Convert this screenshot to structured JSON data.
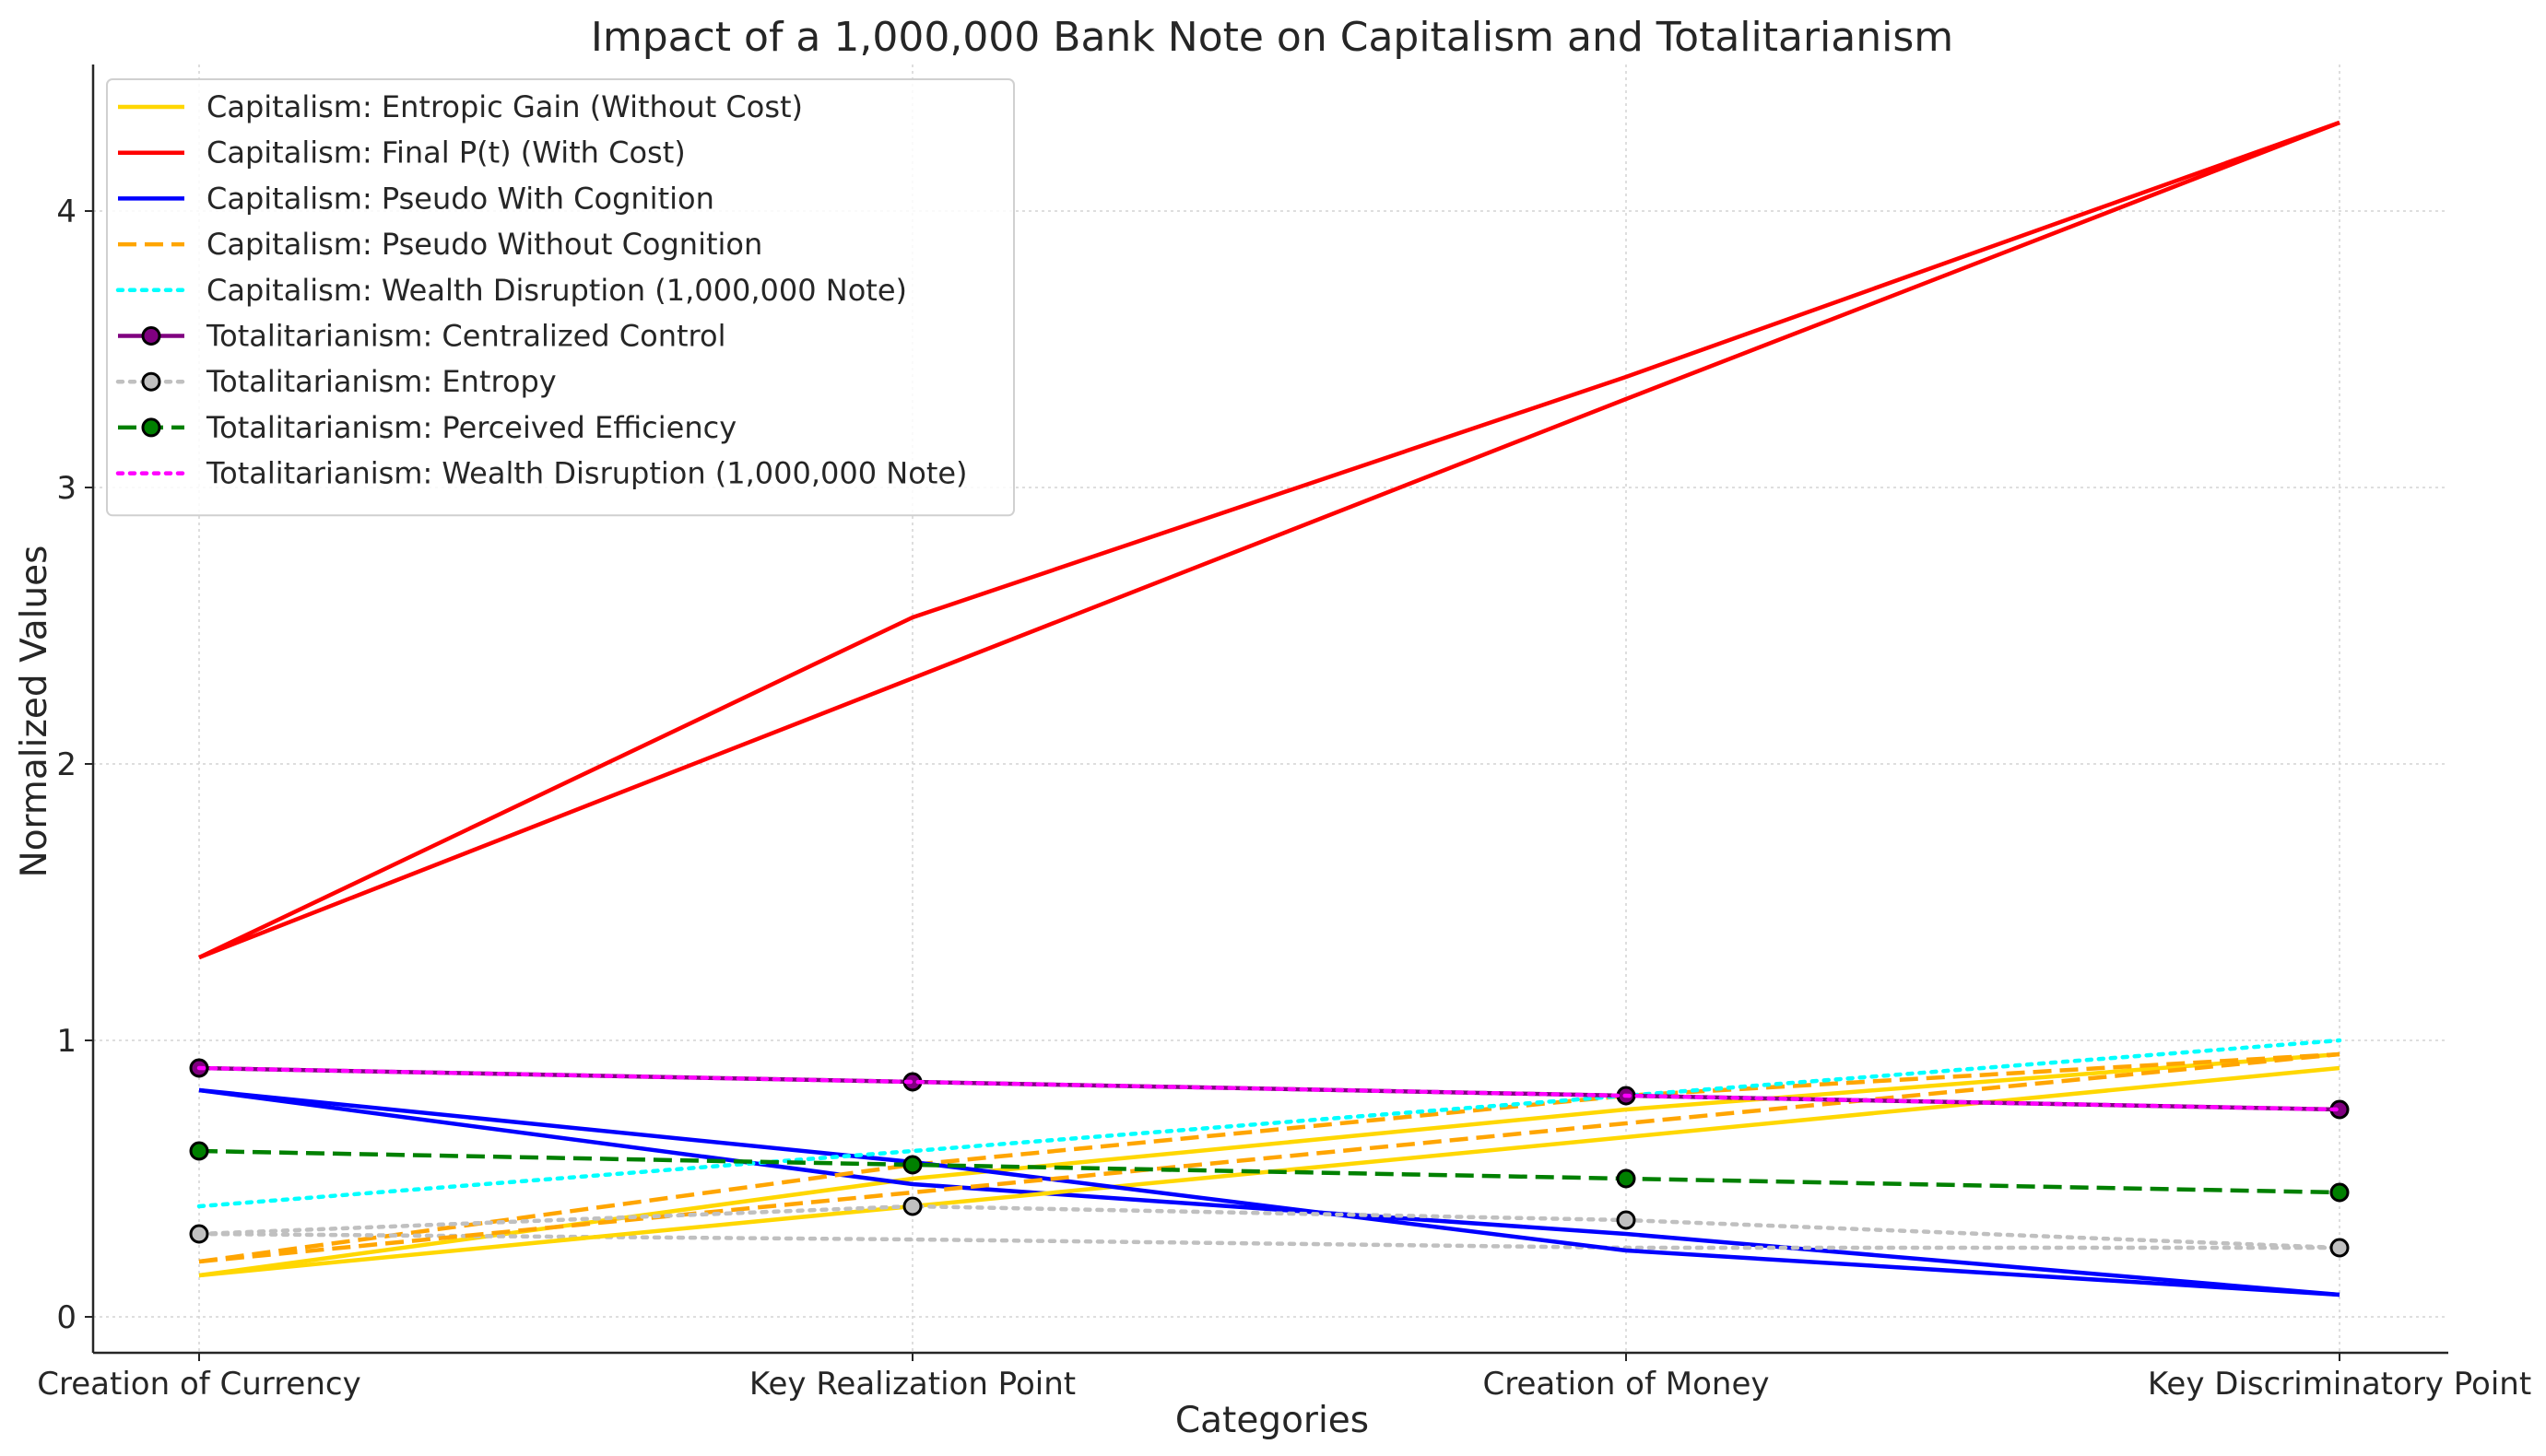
{
  "chart_data": {
    "type": "line",
    "title": "Impact of a 1,000,000 Bank Note on Capitalism and Totalitarianism",
    "xlabel": "Categories",
    "ylabel": "Normalized Values",
    "categories": [
      "Creation of Currency",
      "Key Realization Point",
      "Creation of Money",
      "Key Discriminatory Point"
    ],
    "yticks": [
      "0",
      "1",
      "2",
      "3",
      "4"
    ],
    "ylim": [
      -0.13,
      4.53
    ],
    "grid": true,
    "legend_position": "top-left",
    "series": [
      {
        "name": "Capitalism: Entropic Gain (Without Cost)",
        "color": "#FFD700",
        "style": "solid",
        "marker": false,
        "values": [
          0.15,
          0.4,
          0.65,
          0.9
        ]
      },
      {
        "name": "Capitalism: Final P(t) (With Cost)",
        "color": "#FF0000",
        "style": "solid",
        "marker": false,
        "values": [
          1.3,
          2.53,
          3.4,
          4.32
        ]
      },
      {
        "name": "Capitalism: Pseudo With Cognition",
        "color": "#0000FF",
        "style": "solid",
        "marker": false,
        "values": [
          0.82,
          0.56,
          0.24,
          0.08
        ]
      },
      {
        "name": "Capitalism: Pseudo Without Cognition",
        "color": "#FFA500",
        "style": "dashed",
        "marker": false,
        "values": [
          0.2,
          0.45,
          0.7,
          0.95
        ]
      },
      {
        "name": "Capitalism: Wealth Disruption (1,000,000 Note)",
        "color": "#00FFFF",
        "style": "dotted",
        "marker": false,
        "values": [
          0.4,
          0.6,
          0.8,
          1.0
        ]
      },
      {
        "name": "Totalitarianism: Centralized Control",
        "color": "#800080",
        "style": "solid",
        "marker": true,
        "values": [
          0.9,
          0.85,
          0.8,
          0.75
        ]
      },
      {
        "name": "Totalitarianism: Entropy",
        "color": "#C0C0C0",
        "style": "dotted",
        "marker": true,
        "values": [
          0.3,
          0.4,
          0.35,
          0.25
        ]
      },
      {
        "name": "Totalitarianism: Perceived Efficiency",
        "color": "#008000",
        "style": "dashed",
        "marker": true,
        "values": [
          0.6,
          0.55,
          0.5,
          0.45
        ]
      },
      {
        "name": "Totalitarianism: Wealth Disruption (1,000,000 Note)",
        "color": "#FF00FF",
        "style": "dotted",
        "marker": false,
        "values": [
          0.9,
          0.85,
          0.8,
          0.75
        ]
      }
    ],
    "overlay_series": [
      {
        "color": "#FFD700",
        "style": "solid",
        "values": [
          0.15,
          0.5,
          0.75,
          0.95
        ]
      },
      {
        "color": "#FF0000",
        "style": "solid",
        "values": [
          1.3,
          2.31,
          3.32,
          4.32
        ]
      },
      {
        "color": "#0000FF",
        "style": "solid",
        "values": [
          0.82,
          0.48,
          0.3,
          0.08
        ]
      },
      {
        "color": "#FFA500",
        "style": "dashed",
        "values": [
          0.2,
          0.55,
          0.8,
          0.95
        ]
      },
      {
        "color": "#C0C0C0",
        "style": "dotted",
        "values": [
          0.3,
          0.28,
          0.25,
          0.25
        ]
      }
    ]
  }
}
